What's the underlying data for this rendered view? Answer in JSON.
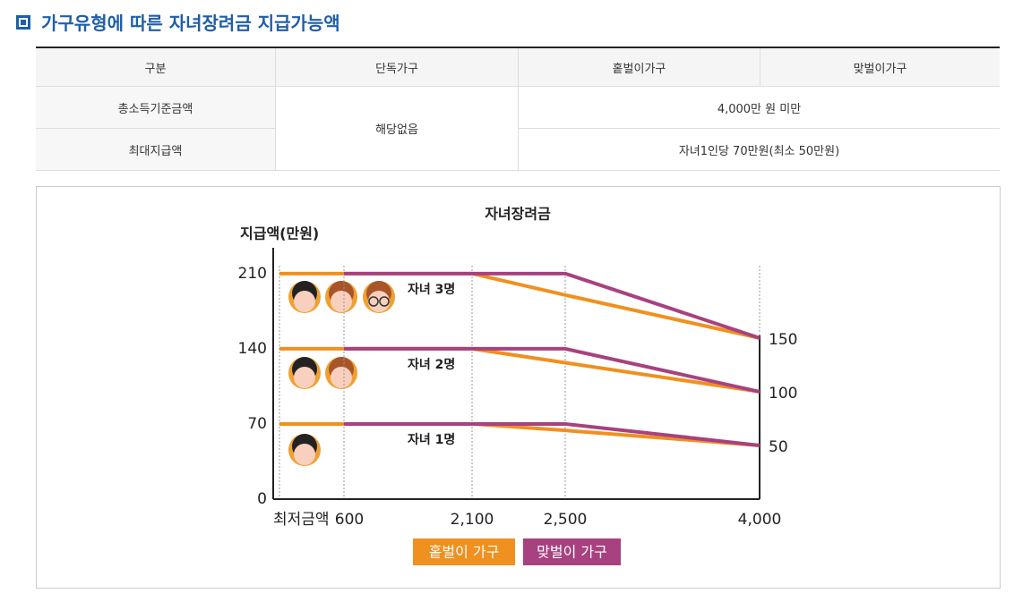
{
  "header": {
    "title": "가구유형에 따른 자녀장려금 지급가능액"
  },
  "table": {
    "header": [
      "구분",
      "단독가구",
      "홑벌이가구",
      "맞벌이가구"
    ],
    "rows": [
      [
        "총소득기준금액",
        "해당없음",
        "4,000만 원 미만"
      ],
      [
        "최대지급액",
        "자녀1인당 70만원(최소 50만원)"
      ]
    ]
  },
  "chart_data": {
    "type": "line",
    "title": "자녀장려금",
    "y_label": "지급액(만원)",
    "categories": [
      "최저금액",
      "600",
      "2,100",
      "2,500",
      "4,000"
    ],
    "group_labels": [
      "자녀 3명",
      "자녀 2명",
      "자녀 1명"
    ],
    "series": [
      {
        "name": "홑벌이 가구",
        "color": "#f0901e",
        "values": [
          [
            210,
            210,
            210,
            190,
            150
          ],
          [
            140,
            140,
            140,
            127,
            100
          ],
          [
            70,
            70,
            70,
            64,
            50
          ]
        ]
      },
      {
        "name": "맞벌이 가구",
        "color": "#a8417f",
        "values": [
          [
            null,
            210,
            210,
            210,
            150
          ],
          [
            null,
            140,
            140,
            140,
            100
          ],
          [
            null,
            70,
            70,
            70,
            50
          ]
        ]
      }
    ],
    "ylim": [
      0,
      234
    ],
    "yticks": [
      0,
      70,
      140,
      210
    ],
    "y2lim": [
      0,
      234
    ],
    "y2ticks": [
      50,
      100,
      150
    ]
  }
}
